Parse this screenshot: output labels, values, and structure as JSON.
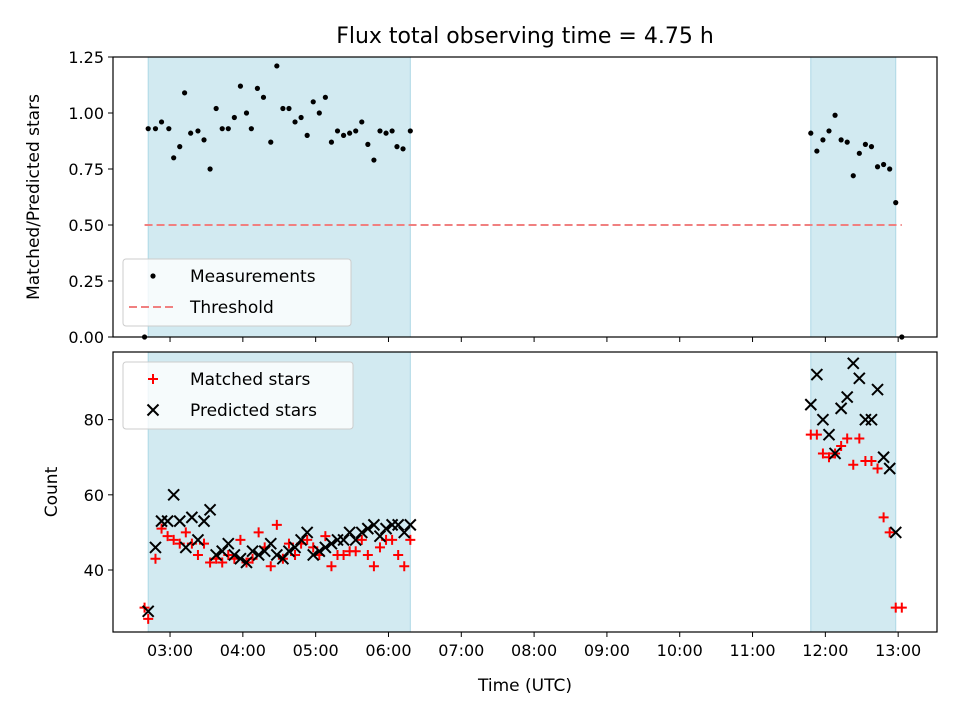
{
  "title": "Flux total observing time = 4.75 h",
  "colors": {
    "span": "#add8e6",
    "threshold": "#f08080",
    "matched": "#ff0000",
    "predicted": "#000000",
    "measurement": "#000000"
  },
  "chart_data": [
    {
      "type": "scatter",
      "title": "Flux total observing time = 4.75 h",
      "xlabel": "",
      "ylabel": "Matched/Predicted stars",
      "ylim": [
        0,
        1.25
      ],
      "yticks": [
        "0.00",
        "0.25",
        "0.50",
        "0.75",
        "1.00",
        "1.25"
      ],
      "xlim": [
        "02:13",
        "13:32"
      ],
      "xtick_labels_shown": false,
      "grid": false,
      "legend_position": "lower-left",
      "legend": [
        "Measurements",
        "Threshold"
      ],
      "observing_windows": [
        [
          "02:42",
          "06:18"
        ],
        [
          "11:48",
          "12:58"
        ]
      ],
      "series": [
        {
          "name": "Measurements",
          "style": "dot",
          "points": [
            [
              "02:39",
              0.0
            ],
            [
              "02:42",
              0.93
            ],
            [
              "02:48",
              0.93
            ],
            [
              "02:53",
              0.96
            ],
            [
              "02:59",
              0.93
            ],
            [
              "03:03",
              0.8
            ],
            [
              "03:08",
              0.85
            ],
            [
              "03:12",
              1.09
            ],
            [
              "03:17",
              0.91
            ],
            [
              "03:23",
              0.92
            ],
            [
              "03:28",
              0.88
            ],
            [
              "03:33",
              0.75
            ],
            [
              "03:38",
              1.02
            ],
            [
              "03:43",
              0.93
            ],
            [
              "03:48",
              0.93
            ],
            [
              "03:53",
              0.98
            ],
            [
              "03:58",
              1.12
            ],
            [
              "04:03",
              1.0
            ],
            [
              "04:07",
              0.93
            ],
            [
              "04:12",
              1.11
            ],
            [
              "04:17",
              1.07
            ],
            [
              "04:23",
              0.87
            ],
            [
              "04:28",
              1.21
            ],
            [
              "04:33",
              1.02
            ],
            [
              "04:38",
              1.02
            ],
            [
              "04:43",
              0.96
            ],
            [
              "04:48",
              0.98
            ],
            [
              "04:53",
              0.9
            ],
            [
              "04:58",
              1.05
            ],
            [
              "05:03",
              1.0
            ],
            [
              "05:08",
              1.07
            ],
            [
              "05:13",
              0.87
            ],
            [
              "05:18",
              0.92
            ],
            [
              "05:23",
              0.9
            ],
            [
              "05:28",
              0.91
            ],
            [
              "05:33",
              0.92
            ],
            [
              "05:38",
              0.96
            ],
            [
              "05:43",
              0.86
            ],
            [
              "05:48",
              0.79
            ],
            [
              "05:53",
              0.92
            ],
            [
              "05:58",
              0.91
            ],
            [
              "06:03",
              0.92
            ],
            [
              "06:07",
              0.85
            ],
            [
              "06:12",
              0.84
            ],
            [
              "06:18",
              0.92
            ],
            [
              "11:48",
              0.91
            ],
            [
              "11:53",
              0.83
            ],
            [
              "11:58",
              0.88
            ],
            [
              "12:03",
              0.92
            ],
            [
              "12:08",
              0.99
            ],
            [
              "12:13",
              0.88
            ],
            [
              "12:18",
              0.87
            ],
            [
              "12:23",
              0.72
            ],
            [
              "12:28",
              0.82
            ],
            [
              "12:33",
              0.86
            ],
            [
              "12:38",
              0.85
            ],
            [
              "12:43",
              0.76
            ],
            [
              "12:48",
              0.77
            ],
            [
              "12:53",
              0.75
            ],
            [
              "12:58",
              0.6
            ],
            [
              "13:03",
              0.0
            ]
          ]
        },
        {
          "name": "Threshold",
          "style": "dashed-line",
          "points": [
            [
              "02:39",
              0.5
            ],
            [
              "13:03",
              0.5
            ]
          ]
        }
      ]
    },
    {
      "type": "scatter",
      "title": "",
      "xlabel": "Time (UTC)",
      "ylabel": "Count",
      "ylim": [
        23.5,
        98
      ],
      "yticks": [
        "40",
        "60",
        "80"
      ],
      "xlim": [
        "02:13",
        "13:32"
      ],
      "xtick_labels": [
        "03:00",
        "04:00",
        "05:00",
        "06:00",
        "07:00",
        "08:00",
        "09:00",
        "10:00",
        "11:00",
        "12:00",
        "13:00"
      ],
      "grid": false,
      "legend_position": "upper-left",
      "legend": [
        "Matched stars",
        "Predicted stars"
      ],
      "observing_windows": [
        [
          "02:42",
          "06:18"
        ],
        [
          "11:48",
          "12:58"
        ]
      ],
      "series": [
        {
          "name": "Matched stars",
          "style": "plus",
          "points": [
            [
              "02:39",
              30
            ],
            [
              "02:42",
              27
            ],
            [
              "02:48",
              43
            ],
            [
              "02:53",
              51
            ],
            [
              "02:58",
              49
            ],
            [
              "03:03",
              48
            ],
            [
              "03:08",
              47
            ],
            [
              "03:13",
              50
            ],
            [
              "03:18",
              47
            ],
            [
              "03:23",
              44
            ],
            [
              "03:28",
              47
            ],
            [
              "03:33",
              42
            ],
            [
              "03:38",
              43
            ],
            [
              "03:43",
              42
            ],
            [
              "03:48",
              44
            ],
            [
              "03:53",
              43
            ],
            [
              "03:58",
              48
            ],
            [
              "04:03",
              42
            ],
            [
              "04:08",
              43
            ],
            [
              "04:13",
              50
            ],
            [
              "04:18",
              46
            ],
            [
              "04:23",
              41
            ],
            [
              "04:28",
              52
            ],
            [
              "04:33",
              43
            ],
            [
              "04:38",
              47
            ],
            [
              "04:43",
              44
            ],
            [
              "04:48",
              47
            ],
            [
              "04:53",
              48
            ],
            [
              "04:58",
              46
            ],
            [
              "05:03",
              44
            ],
            [
              "05:08",
              49
            ],
            [
              "05:13",
              41
            ],
            [
              "05:18",
              44
            ],
            [
              "05:23",
              44
            ],
            [
              "05:28",
              45
            ],
            [
              "05:33",
              45
            ],
            [
              "05:38",
              48
            ],
            [
              "05:43",
              44
            ],
            [
              "05:48",
              41
            ],
            [
              "05:53",
              46
            ],
            [
              "05:58",
              48
            ],
            [
              "06:03",
              48
            ],
            [
              "06:08",
              44
            ],
            [
              "06:13",
              41
            ],
            [
              "06:18",
              48
            ],
            [
              "11:48",
              76
            ],
            [
              "11:53",
              76
            ],
            [
              "11:58",
              71
            ],
            [
              "12:03",
              70
            ],
            [
              "12:08",
              71
            ],
            [
              "12:13",
              73
            ],
            [
              "12:18",
              75
            ],
            [
              "12:23",
              68
            ],
            [
              "12:28",
              75
            ],
            [
              "12:33",
              69
            ],
            [
              "12:38",
              69
            ],
            [
              "12:43",
              67
            ],
            [
              "12:48",
              54
            ],
            [
              "12:53",
              50
            ],
            [
              "12:58",
              30
            ],
            [
              "13:03",
              30
            ]
          ]
        },
        {
          "name": "Predicted stars",
          "style": "x",
          "points": [
            [
              "02:42",
              29
            ],
            [
              "02:48",
              46
            ],
            [
              "02:53",
              53
            ],
            [
              "02:58",
              53
            ],
            [
              "03:03",
              60
            ],
            [
              "03:08",
              53
            ],
            [
              "03:13",
              46
            ],
            [
              "03:18",
              54
            ],
            [
              "03:23",
              48
            ],
            [
              "03:28",
              53
            ],
            [
              "03:33",
              56
            ],
            [
              "03:38",
              44
            ],
            [
              "03:43",
              45
            ],
            [
              "03:48",
              47
            ],
            [
              "03:53",
              44
            ],
            [
              "03:58",
              43
            ],
            [
              "04:03",
              42
            ],
            [
              "04:08",
              45
            ],
            [
              "04:13",
              44
            ],
            [
              "04:18",
              45
            ],
            [
              "04:23",
              47
            ],
            [
              "04:28",
              44
            ],
            [
              "04:33",
              43
            ],
            [
              "04:38",
              45
            ],
            [
              "04:43",
              46
            ],
            [
              "04:48",
              48
            ],
            [
              "04:53",
              50
            ],
            [
              "04:58",
              44
            ],
            [
              "05:03",
              45
            ],
            [
              "05:08",
              46
            ],
            [
              "05:13",
              47
            ],
            [
              "05:18",
              48
            ],
            [
              "05:23",
              48
            ],
            [
              "05:28",
              50
            ],
            [
              "05:33",
              48
            ],
            [
              "05:38",
              50
            ],
            [
              "05:43",
              51
            ],
            [
              "05:48",
              52
            ],
            [
              "05:53",
              49
            ],
            [
              "05:58",
              51
            ],
            [
              "06:03",
              52
            ],
            [
              "06:08",
              52
            ],
            [
              "06:13",
              50
            ],
            [
              "06:18",
              52
            ],
            [
              "11:48",
              84
            ],
            [
              "11:53",
              92
            ],
            [
              "11:58",
              80
            ],
            [
              "12:03",
              76
            ],
            [
              "12:08",
              71
            ],
            [
              "12:13",
              83
            ],
            [
              "12:18",
              86
            ],
            [
              "12:23",
              95
            ],
            [
              "12:28",
              91
            ],
            [
              "12:33",
              80
            ],
            [
              "12:38",
              80
            ],
            [
              "12:43",
              88
            ],
            [
              "12:48",
              70
            ],
            [
              "12:53",
              67
            ],
            [
              "12:58",
              50
            ]
          ]
        }
      ]
    }
  ]
}
